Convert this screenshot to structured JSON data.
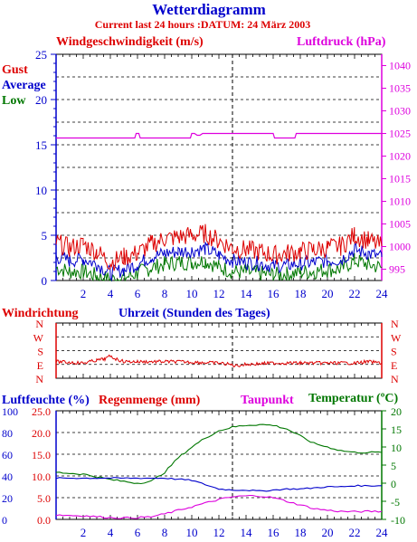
{
  "title": "Wetterdiagramm",
  "subtitle": "Current last 24 hours :DATUM: 24 März 2003",
  "colors": {
    "gust": "#dd0000",
    "average": "#0000cc",
    "low": "#007700",
    "pressure": "#dd00dd",
    "direction": "#dd0000",
    "humidity": "#0000cc",
    "rain": "#dd0000",
    "dewpoint": "#dd00dd",
    "temperature": "#007700",
    "axis": "#0000cc",
    "grid": "#000000"
  },
  "chart_data": [
    {
      "type": "line",
      "id": "wind",
      "title": "",
      "ylabel": "Windgeschwindigkeit (m/s)",
      "y2label": "Luftdruck (hPa)",
      "legend": [
        "Gust",
        "Average",
        "Low"
      ],
      "xlim": [
        0,
        24
      ],
      "ylim": [
        0,
        25
      ],
      "y2lim": [
        992.5,
        1042.5
      ],
      "xticks": [
        "2",
        "4",
        "6",
        "8",
        "10",
        "12",
        "14",
        "16",
        "18",
        "20",
        "22",
        "24"
      ],
      "yticks": [
        "0",
        "5",
        "10",
        "15",
        "20",
        "25"
      ],
      "y2ticks": [
        "995",
        "1000",
        "1005",
        "1010",
        "1015",
        "1020",
        "1025",
        "1030",
        "1035",
        "1040"
      ],
      "series": [
        {
          "name": "Gust",
          "axis": "left",
          "x": [
            0,
            1,
            2,
            3,
            4,
            5,
            6,
            7,
            8,
            9,
            10,
            11,
            12,
            13,
            14,
            15,
            16,
            17,
            18,
            19,
            20,
            21,
            22,
            23,
            24
          ],
          "values": [
            4.2,
            3.6,
            4.0,
            3.2,
            2.0,
            2.6,
            3.0,
            4.0,
            4.6,
            4.8,
            5.0,
            5.2,
            4.4,
            3.6,
            3.4,
            3.2,
            2.8,
            3.0,
            3.2,
            3.4,
            3.6,
            3.8,
            5.0,
            4.4,
            3.8
          ]
        },
        {
          "name": "Average",
          "axis": "left",
          "x": [
            0,
            1,
            2,
            3,
            4,
            5,
            6,
            7,
            8,
            9,
            10,
            11,
            12,
            13,
            14,
            15,
            16,
            17,
            18,
            19,
            20,
            21,
            22,
            23,
            24
          ],
          "values": [
            2.6,
            2.2,
            2.4,
            1.8,
            0.8,
            1.2,
            1.8,
            2.6,
            3.0,
            3.2,
            3.3,
            3.5,
            2.8,
            2.2,
            2.0,
            1.9,
            1.6,
            1.7,
            1.9,
            2.0,
            2.2,
            2.3,
            3.4,
            3.0,
            2.6
          ]
        },
        {
          "name": "Low",
          "axis": "left",
          "x": [
            0,
            1,
            2,
            3,
            4,
            5,
            6,
            7,
            8,
            9,
            10,
            11,
            12,
            13,
            14,
            15,
            16,
            17,
            18,
            19,
            20,
            21,
            22,
            23,
            24
          ],
          "values": [
            1.4,
            1.0,
            1.0,
            0.5,
            0.1,
            0.3,
            0.8,
            1.4,
            1.8,
            2.0,
            2.0,
            2.2,
            1.5,
            1.0,
            0.9,
            0.8,
            0.6,
            0.7,
            0.9,
            1.0,
            1.2,
            1.3,
            2.2,
            1.8,
            1.4
          ]
        },
        {
          "name": "Luftdruck",
          "axis": "right",
          "x": [
            0,
            5.8,
            5.9,
            6.1,
            6.2,
            9.9,
            10.0,
            10.2,
            10.4,
            10.6,
            10.8,
            11.0,
            11.2,
            16.0,
            16.1,
            17.6,
            17.7,
            24
          ],
          "values": [
            1024,
            1024,
            1025,
            1025,
            1024,
            1024,
            1025,
            1025,
            1024.6,
            1024.6,
            1025,
            1025,
            1025,
            1025,
            1024,
            1024,
            1025,
            1025
          ]
        }
      ]
    },
    {
      "type": "line",
      "id": "direction",
      "ylabel": "Windrichtung",
      "xlabel": "Uhrzeit (Stunden des Tages)",
      "yticks": [
        "N",
        "W",
        "S",
        "E",
        "N"
      ],
      "series": [
        {
          "name": "Windrichtung",
          "x": [
            0,
            2,
            3,
            3.6,
            4,
            4.4,
            5,
            6,
            9,
            12,
            12.8,
            13.2,
            14,
            16,
            18,
            20,
            22,
            23,
            24
          ],
          "values": [
            2.8,
            2.9,
            2.7,
            2.6,
            2.4,
            2.6,
            2.8,
            2.8,
            2.8,
            2.9,
            3.0,
            3.1,
            3.0,
            2.9,
            2.9,
            2.9,
            2.9,
            2.8,
            2.9
          ]
        }
      ]
    },
    {
      "type": "line",
      "id": "humidity",
      "labels": [
        "Luftfeuchte (%)",
        "Regenmenge (mm)",
        "Taupunkt",
        "Temperatur (ºC)"
      ],
      "xlim": [
        0,
        24
      ],
      "ylim": [
        0,
        100
      ],
      "rain_ticks": [
        "0.0",
        "5.0",
        "10.0",
        "15.0",
        "20.0",
        "25.0"
      ],
      "hum_ticks": [
        "0",
        "20",
        "40",
        "60",
        "80",
        "100"
      ],
      "temp_ticks": [
        "-10",
        "-5",
        "0",
        "5",
        "10",
        "15",
        "20"
      ],
      "temp_ylim": [
        -10,
        20
      ],
      "series": [
        {
          "name": "Temperatur",
          "axis": "right",
          "x": [
            0,
            2,
            4,
            6,
            7,
            8,
            9,
            10,
            11,
            12,
            13,
            14,
            15,
            16,
            17,
            18,
            19,
            20,
            21,
            22,
            23,
            24
          ],
          "values": [
            3,
            2.5,
            1,
            0,
            0.5,
            3,
            7,
            10,
            12.5,
            14.5,
            15.5,
            16,
            16.2,
            16,
            15,
            13,
            11,
            10,
            9,
            8.5,
            8.5,
            8.5
          ]
        },
        {
          "name": "Luftfeuchte",
          "axis": "left",
          "x": [
            0,
            2,
            4,
            6,
            8,
            10,
            11,
            12,
            13,
            14,
            15,
            16,
            17,
            18,
            19,
            20,
            21,
            22,
            23,
            24
          ],
          "values": [
            38,
            38,
            38,
            38,
            38,
            36,
            32,
            28,
            27,
            27,
            26,
            27,
            28,
            28,
            29,
            30,
            30,
            31,
            31,
            31
          ]
        },
        {
          "name": "Taupunkt",
          "axis": "right",
          "x": [
            0,
            2,
            4,
            5,
            6,
            7,
            8,
            9,
            10,
            11,
            12,
            13,
            14,
            15,
            16,
            17,
            18,
            19,
            20,
            21,
            22,
            23,
            24
          ],
          "values": [
            -8.8,
            -9,
            -9.5,
            -9.6,
            -9.5,
            -9.3,
            -8.5,
            -7.5,
            -6.5,
            -5.5,
            -4.5,
            -3.8,
            -3.5,
            -3.5,
            -4,
            -5,
            -6,
            -7,
            -7.5,
            -7.8,
            -7.9,
            -7.8,
            -7.8
          ]
        }
      ]
    }
  ]
}
